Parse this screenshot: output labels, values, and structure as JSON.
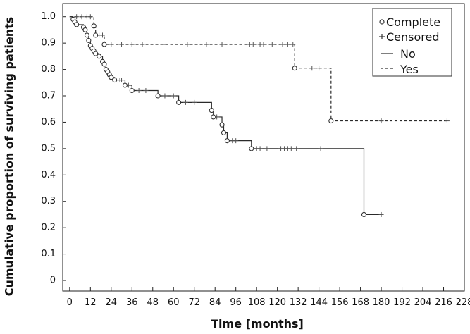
{
  "chart_data": {
    "type": "line",
    "subtype": "kaplan-meier",
    "title": "",
    "xlabel": "Time [months]",
    "ylabel": "Cumulative proportion of surviving patients",
    "xlim": [
      -4,
      228
    ],
    "ylim": [
      -0.04,
      1.05
    ],
    "xticks": [
      0,
      12,
      24,
      36,
      48,
      60,
      72,
      84,
      96,
      108,
      120,
      132,
      144,
      156,
      168,
      180,
      192,
      204,
      216,
      228
    ],
    "yticks": [
      0,
      0.1,
      0.2,
      0.3,
      0.4,
      0.5,
      0.6,
      0.7,
      0.8,
      0.9,
      1.0
    ],
    "ytick_labels": [
      "0",
      "0.1",
      "0.2",
      "0.3",
      "0.4",
      "0.5",
      "0.6",
      "0.7",
      "0.8",
      "0.9",
      "1.0"
    ],
    "grid": false,
    "legend": {
      "position": "top-right",
      "entries": [
        {
          "label": "Complete",
          "marker": "circle"
        },
        {
          "label": "Censored",
          "marker": "plus"
        },
        {
          "label": "No",
          "line": "solid"
        },
        {
          "label": "Yes",
          "line": "dashed"
        }
      ]
    },
    "series": [
      {
        "name": "No",
        "style": "solid",
        "steps": [
          [
            0,
            1.0
          ],
          [
            2,
            0.99
          ],
          [
            3,
            0.98
          ],
          [
            4,
            0.97
          ],
          [
            8,
            0.96
          ],
          [
            9,
            0.95
          ],
          [
            10,
            0.93
          ],
          [
            11,
            0.91
          ],
          [
            12,
            0.89
          ],
          [
            13,
            0.88
          ],
          [
            14,
            0.87
          ],
          [
            15,
            0.86
          ],
          [
            17,
            0.85
          ],
          [
            19,
            0.83
          ],
          [
            20,
            0.82
          ],
          [
            21,
            0.8
          ],
          [
            22,
            0.79
          ],
          [
            23,
            0.78
          ],
          [
            24,
            0.77
          ],
          [
            26,
            0.76
          ],
          [
            32,
            0.74
          ],
          [
            36,
            0.72
          ],
          [
            51,
            0.7
          ],
          [
            63,
            0.675
          ],
          [
            82,
            0.645
          ],
          [
            83,
            0.62
          ],
          [
            88,
            0.59
          ],
          [
            89,
            0.56
          ],
          [
            91,
            0.53
          ],
          [
            105,
            0.5
          ],
          [
            170,
            0.25
          ]
        ],
        "end_x": 180,
        "complete_events": [
          [
            2,
            0.99
          ],
          [
            3,
            0.98
          ],
          [
            4,
            0.97
          ],
          [
            8,
            0.96
          ],
          [
            9,
            0.95
          ],
          [
            10,
            0.93
          ],
          [
            11,
            0.91
          ],
          [
            12,
            0.89
          ],
          [
            13,
            0.88
          ],
          [
            14,
            0.87
          ],
          [
            15,
            0.86
          ],
          [
            17,
            0.85
          ],
          [
            19,
            0.83
          ],
          [
            20,
            0.82
          ],
          [
            21,
            0.8
          ],
          [
            22,
            0.79
          ],
          [
            23,
            0.78
          ],
          [
            24,
            0.77
          ],
          [
            26,
            0.76
          ],
          [
            32,
            0.74
          ],
          [
            36,
            0.72
          ],
          [
            51,
            0.7
          ],
          [
            63,
            0.675
          ],
          [
            82,
            0.645
          ],
          [
            83,
            0.62
          ],
          [
            88,
            0.59
          ],
          [
            89,
            0.56
          ],
          [
            91,
            0.53
          ],
          [
            105,
            0.5
          ],
          [
            170,
            0.25
          ]
        ],
        "censored": [
          [
            29,
            0.76
          ],
          [
            30,
            0.76
          ],
          [
            34,
            0.74
          ],
          [
            40,
            0.72
          ],
          [
            44,
            0.72
          ],
          [
            55,
            0.7
          ],
          [
            60,
            0.7
          ],
          [
            67,
            0.675
          ],
          [
            72,
            0.675
          ],
          [
            85,
            0.62
          ],
          [
            94,
            0.53
          ],
          [
            96,
            0.53
          ],
          [
            108,
            0.5
          ],
          [
            110,
            0.5
          ],
          [
            114,
            0.5
          ],
          [
            122,
            0.5
          ],
          [
            124,
            0.5
          ],
          [
            126,
            0.5
          ],
          [
            128,
            0.5
          ],
          [
            131,
            0.5
          ],
          [
            145,
            0.5
          ],
          [
            180,
            0.25
          ]
        ]
      },
      {
        "name": "Yes",
        "style": "dashed",
        "steps": [
          [
            0,
            1.0
          ],
          [
            14,
            0.965
          ],
          [
            15,
            0.93
          ],
          [
            20,
            0.895
          ],
          [
            130,
            0.805
          ],
          [
            151,
            0.605
          ]
        ],
        "end_x": 218,
        "complete_events": [
          [
            14,
            0.965
          ],
          [
            15,
            0.93
          ],
          [
            20,
            0.895
          ],
          [
            130,
            0.805
          ],
          [
            151,
            0.605
          ]
        ],
        "censored": [
          [
            4,
            1.0
          ],
          [
            7,
            1.0
          ],
          [
            10,
            1.0
          ],
          [
            12,
            1.0
          ],
          [
            17,
            0.93
          ],
          [
            19,
            0.93
          ],
          [
            24,
            0.895
          ],
          [
            30,
            0.895
          ],
          [
            36,
            0.895
          ],
          [
            42,
            0.895
          ],
          [
            54,
            0.895
          ],
          [
            68,
            0.895
          ],
          [
            79,
            0.895
          ],
          [
            88,
            0.895
          ],
          [
            104,
            0.895
          ],
          [
            106,
            0.895
          ],
          [
            110,
            0.895
          ],
          [
            112,
            0.895
          ],
          [
            117,
            0.895
          ],
          [
            123,
            0.895
          ],
          [
            126,
            0.895
          ],
          [
            129,
            0.895
          ],
          [
            140,
            0.805
          ],
          [
            144,
            0.805
          ],
          [
            180,
            0.605
          ],
          [
            218,
            0.605
          ]
        ]
      }
    ]
  }
}
